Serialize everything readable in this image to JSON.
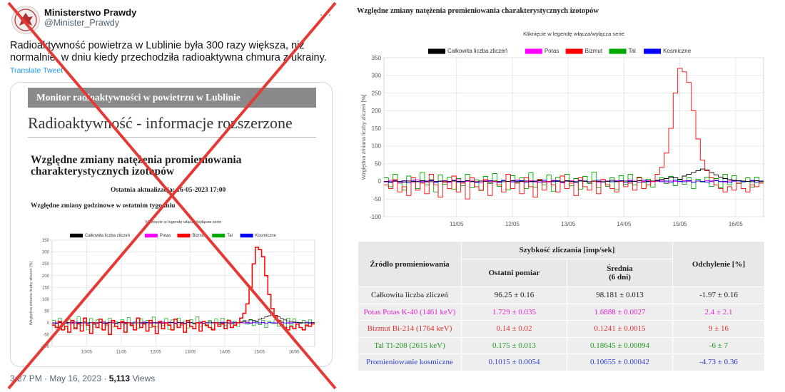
{
  "tweet": {
    "display_name": "Ministerstwo Prawdy",
    "handle": "@Minister_Prawdy",
    "text": "Radioaktywność powietrza w Lublinie była 300 razy większa, niż normalnie, w dniu kiedy przechodziła radioaktywna chmura z ukrainy.",
    "translate_label": "Translate Tweet",
    "more_icon": "more-icon",
    "time": "3:27 PM · May 16, 2023 · ",
    "views_count": "5,113",
    "views_label": " Views",
    "card": {
      "banner": "Monitor radioaktywności w powietrzu w Lublinie",
      "heading": "Radioaktywność - informacje rozszerzone",
      "title": "Względne zmiany natężenia promieniowania charakterystycznych izotopów",
      "updated": "Ostatnia aktualizacja: 16-05-2023 17:00",
      "subtitle": "Względne zmiany godzinowe w ostatnim tygodniu"
    },
    "cross_color": "#e53935"
  },
  "right_title": "Względne zmiany natężenia promieniowania charakterystycznych izotopów",
  "table": {
    "source_header": "Źródło promieniowania",
    "rate_header": "Szybkość zliczania [imp/sek]",
    "last_header": "Ostatni pomiar",
    "mean_header": "Średnia",
    "mean_sub": "(6 dni)",
    "dev_header": "Odchylenie [%]",
    "rows": [
      {
        "source": "Całkowita liczba zliczeń",
        "last": "96.25 ± 0.16",
        "mean": "98.181 ± 0.013",
        "dev": "-1.97 ± 0.16",
        "color": "#222222"
      },
      {
        "source": "Potas Potas K-40 (1461 keV)",
        "last": "1.729 ± 0.035",
        "mean": "1.6888 ± 0.0027",
        "dev": "2.4 ± 2.1",
        "color": "#e020d0"
      },
      {
        "source": "Bizmut Bi-214 (1764 keV)",
        "last": "0.14 ± 0.02",
        "mean": "0.1241 ± 0.0015",
        "dev": "9 ± 16",
        "color": "#e03030"
      },
      {
        "source": "Tal Tl-208 (2615 keV)",
        "last": "0.175 ± 0.013",
        "mean": "0.18645 ± 0.00094",
        "dev": "-6 ± 7",
        "color": "#229922"
      },
      {
        "source": "Promieniowanie kosmiczne",
        "last": "0.1015 ± 0.0054",
        "mean": "0.10655 ± 0.00042",
        "dev": "-4.73 ± 0.36",
        "color": "#3040d0"
      }
    ]
  },
  "chart_data": [
    {
      "type": "line",
      "subtitle": "Kliknięcie w legendę włącza/wyłącza serie",
      "ylabel": "Względna zmiana liczby zliczeń [%]",
      "xlabel": "",
      "x_ticks": [
        "11/05",
        "12/05",
        "13/05",
        "14/05",
        "15/05",
        "16/05"
      ],
      "ylim": [
        -100,
        350
      ],
      "y_ticks": [
        -100,
        -50,
        0,
        50,
        100,
        150,
        200,
        250,
        300,
        350
      ],
      "grid": true,
      "legend_position": "top",
      "series": [
        {
          "name": "Całkowita liczba zliczeń",
          "color": "#000000",
          "values": [
            0,
            -1,
            1,
            0,
            -2,
            1,
            0,
            -1,
            2,
            0,
            -1,
            0,
            1,
            -2,
            0,
            1,
            0,
            -1,
            2,
            0,
            -1,
            1,
            0,
            -2,
            1,
            0,
            -1,
            0,
            2,
            -1,
            0,
            1,
            -1,
            0,
            2,
            -2,
            0,
            1,
            0,
            -1,
            2,
            0,
            -1,
            1,
            0,
            -2,
            1,
            0,
            -1,
            0,
            3,
            -1,
            0,
            1,
            -1,
            0,
            2,
            -2,
            0,
            1,
            3,
            5,
            8,
            12,
            10,
            6,
            15,
            20,
            25,
            30,
            35,
            32,
            25,
            18,
            12,
            8,
            5,
            3,
            2,
            1,
            0,
            -1,
            2,
            0
          ]
        },
        {
          "name": "Potas",
          "color": "#ff00ff",
          "values": [
            -2,
            3,
            0,
            -4,
            2,
            1,
            -3,
            4,
            0,
            -2,
            3,
            -1,
            0,
            2,
            -3,
            1,
            4,
            -2,
            0,
            3,
            -1,
            -4,
            2,
            0,
            1,
            -3,
            3,
            0,
            -2,
            4,
            -1,
            0,
            2,
            -3,
            1,
            0,
            -2,
            3,
            1,
            -4,
            0,
            2,
            -1,
            3,
            0,
            -2,
            1,
            -3,
            4,
            0,
            -1,
            2,
            0,
            -3,
            3,
            1,
            -2,
            0,
            2,
            -1,
            0,
            3,
            -2,
            1,
            0,
            -1,
            2,
            0,
            -3,
            1,
            0,
            2,
            -1,
            3,
            0,
            -2,
            1,
            0,
            2,
            -1,
            0,
            3,
            -2,
            1
          ]
        },
        {
          "name": "Bizmut",
          "color": "#ff0000",
          "values": [
            -10,
            -20,
            5,
            -30,
            -15,
            -40,
            10,
            -25,
            -5,
            -35,
            20,
            -10,
            -45,
            0,
            -20,
            15,
            -30,
            -5,
            -50,
            10,
            -15,
            -25,
            5,
            -40,
            0,
            -10,
            -30,
            20,
            -20,
            -5,
            -35,
            10,
            -15,
            -45,
            5,
            -25,
            0,
            -10,
            -30,
            15,
            -20,
            -5,
            -40,
            10,
            -15,
            -25,
            0,
            -35,
            5,
            -10,
            -20,
            -30,
            0,
            -15,
            -5,
            -25,
            10,
            -20,
            -10,
            0,
            20,
            40,
            80,
            150,
            250,
            320,
            310,
            280,
            200,
            120,
            60,
            30,
            10,
            -10,
            -20,
            -30,
            -15,
            -25,
            -5,
            -20,
            -30,
            -10,
            -15,
            -5
          ]
        },
        {
          "name": "Tal",
          "color": "#00aa00",
          "values": [
            10,
            -15,
            20,
            -5,
            -25,
            15,
            0,
            -20,
            25,
            -10,
            5,
            -30,
            18,
            -8,
            12,
            -22,
            8,
            -12,
            20,
            -18,
            4,
            -26,
            14,
            -6,
            22,
            -14,
            2,
            -24,
            16,
            -4,
            10,
            -20,
            24,
            -16,
            6,
            -10,
            18,
            -28,
            12,
            -2,
            20,
            -12,
            8,
            -22,
            14,
            -6,
            26,
            -18,
            4,
            -14,
            10,
            -24,
            16,
            -8,
            20,
            -10,
            12,
            -20,
            6,
            -16,
            0,
            10,
            -6,
            14,
            -12,
            4,
            -8,
            10,
            -20,
            6,
            -2,
            12,
            -14,
            8,
            -18,
            20,
            -10,
            16,
            -6,
            -2,
            10,
            -16,
            12,
            -4
          ]
        },
        {
          "name": "Kosmiczne",
          "color": "#0000ff",
          "values": [
            0,
            -3,
            2,
            -1,
            1,
            -4,
            3,
            0,
            -2,
            1,
            2,
            -3,
            0,
            1,
            -1,
            3,
            -2,
            0,
            2,
            -1,
            -3,
            1,
            0,
            2,
            -1,
            -2,
            3,
            0,
            -1,
            1,
            2,
            -3,
            0,
            1,
            -2,
            3,
            0,
            -1,
            2,
            -2,
            1,
            0,
            -3,
            2,
            1,
            -1,
            0,
            3,
            -2,
            1,
            -1,
            0,
            2,
            -3,
            1,
            0,
            -2,
            3,
            -1,
            0,
            2,
            -1,
            1,
            -2,
            3,
            0,
            -1,
            2,
            -3,
            1,
            0,
            -2,
            1,
            2,
            -1,
            0,
            -3,
            2,
            1,
            -1,
            0,
            2,
            -2,
            1
          ]
        }
      ]
    },
    {
      "type": "line",
      "subtitle": "Kliknięcie w legendę włącza/wyłącza serie",
      "ylabel": "Względna zmiana liczby zliczeń [%]",
      "xlabel": "",
      "x_ticks": [
        "10/05",
        "11/05",
        "12/05",
        "13/05",
        "14/05",
        "15/05",
        "16/05"
      ],
      "ylim": [
        -100,
        350
      ],
      "y_ticks": [
        -100,
        -50,
        0,
        50,
        100,
        150,
        200,
        250,
        300,
        350
      ],
      "grid": true,
      "legend_position": "top",
      "series": [
        {
          "name": "Całkowita liczba zliczeń",
          "color": "#000000",
          "values": [
            0,
            -1,
            1,
            0,
            -2,
            1,
            0,
            -1,
            2,
            0,
            -1,
            0,
            1,
            -2,
            0,
            1,
            0,
            -1,
            2,
            0,
            -1,
            1,
            0,
            -2,
            1,
            0,
            -1,
            0,
            2,
            -1,
            0,
            1,
            -1,
            0,
            2,
            -2,
            0,
            1,
            0,
            -1,
            2,
            0,
            -1,
            1,
            0,
            -2,
            1,
            0,
            -1,
            0,
            3,
            -1,
            0,
            1,
            -1,
            0,
            2,
            -2,
            0,
            1,
            3,
            5,
            8,
            12,
            10,
            6,
            15,
            20,
            25,
            30,
            35,
            32,
            25,
            18,
            12,
            8,
            5,
            3,
            2,
            1,
            0,
            -1,
            2,
            0
          ]
        },
        {
          "name": "Potas",
          "color": "#ff00ff",
          "values": [
            -2,
            3,
            0,
            -4,
            2,
            1,
            -3,
            4,
            0,
            -2,
            3,
            -1,
            0,
            2,
            -3,
            1,
            4,
            -2,
            0,
            3,
            -1,
            -4,
            2,
            0,
            1,
            -3,
            3,
            0,
            -2,
            4,
            -1,
            0,
            2,
            -3,
            1,
            0,
            -2,
            3,
            1,
            -4,
            0,
            2,
            -1,
            3,
            0,
            -2,
            1,
            -3,
            4,
            0,
            -1,
            2,
            0,
            -3,
            3,
            1,
            -2,
            0,
            2,
            -1,
            0,
            3,
            -2,
            1,
            0,
            -1,
            2,
            0,
            -3,
            1,
            0,
            2,
            -1,
            3,
            0,
            -2,
            1,
            0,
            2,
            -1,
            0,
            3,
            -2,
            1
          ]
        },
        {
          "name": "Bizmut",
          "color": "#ff0000",
          "values": [
            -10,
            -20,
            5,
            -30,
            -15,
            -40,
            10,
            -25,
            -5,
            -35,
            20,
            -10,
            -45,
            0,
            -20,
            15,
            -30,
            -5,
            -50,
            10,
            -15,
            -25,
            5,
            -40,
            0,
            -10,
            -30,
            20,
            -20,
            -5,
            -35,
            10,
            -15,
            -45,
            5,
            -25,
            0,
            -10,
            -30,
            15,
            -20,
            -5,
            -40,
            10,
            -15,
            -25,
            0,
            -35,
            5,
            -10,
            -20,
            -30,
            0,
            -15,
            -5,
            -25,
            10,
            -20,
            -10,
            0,
            20,
            40,
            80,
            150,
            250,
            320,
            310,
            280,
            200,
            120,
            60,
            30,
            10,
            -10,
            -20,
            -30,
            -15,
            -25,
            -5,
            -20,
            -30,
            -10,
            -15,
            -5
          ]
        },
        {
          "name": "Tal",
          "color": "#00aa00",
          "values": [
            10,
            -15,
            20,
            -5,
            -25,
            15,
            0,
            -20,
            25,
            -10,
            5,
            -30,
            18,
            -8,
            12,
            -22,
            8,
            -12,
            20,
            -18,
            4,
            -26,
            14,
            -6,
            22,
            -14,
            2,
            -24,
            16,
            -4,
            10,
            -20,
            24,
            -16,
            6,
            -10,
            18,
            -28,
            12,
            -2,
            20,
            -12,
            8,
            -22,
            14,
            -6,
            26,
            -18,
            4,
            -14,
            10,
            -24,
            16,
            -8,
            20,
            -10,
            12,
            -20,
            6,
            -16,
            0,
            10,
            -6,
            14,
            -12,
            4,
            -8,
            10,
            -20,
            6,
            -2,
            12,
            -14,
            8,
            -18,
            20,
            -10,
            16,
            -6,
            -2,
            10,
            -16,
            12,
            -4
          ]
        },
        {
          "name": "Kosmiczne",
          "color": "#0000ff",
          "values": [
            0,
            -3,
            2,
            -1,
            1,
            -4,
            3,
            0,
            -2,
            1,
            2,
            -3,
            0,
            1,
            -1,
            3,
            -2,
            0,
            2,
            -1,
            -3,
            1,
            0,
            2,
            -1,
            -2,
            3,
            0,
            -1,
            1,
            2,
            -3,
            0,
            1,
            -2,
            3,
            0,
            -1,
            2,
            -2,
            1,
            0,
            -3,
            2,
            1,
            -1,
            0,
            3,
            -2,
            1,
            -1,
            0,
            2,
            -3,
            1,
            0,
            -2,
            3,
            -1,
            0,
            2,
            -1,
            1,
            -2,
            3,
            0,
            -1,
            2,
            -3,
            1,
            0,
            -2,
            1,
            2,
            -1,
            0,
            -3,
            2,
            1,
            -1,
            0,
            2,
            -2,
            1
          ]
        }
      ]
    }
  ]
}
